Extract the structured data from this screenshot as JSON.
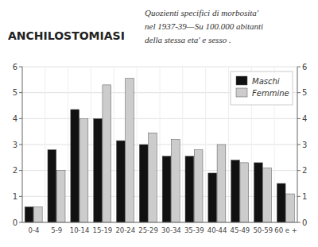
{
  "chart_data": {
    "type": "bar",
    "title": "ANCHILOSTOMIASI",
    "subtitle": [
      "Quozienti specifici di morbosita'",
      "nel 1937-39—Su 100.000 abitanti",
      "della stessa eta' e sesso ."
    ],
    "categories": [
      "0-4",
      "5-9",
      "10-14",
      "15-19",
      "20-24",
      "25-29",
      "30-34",
      "35-39",
      "40-44",
      "45-49",
      "50-59",
      "60 e +"
    ],
    "series": [
      {
        "name": "Maschi",
        "color": "#111111",
        "values": [
          0.6,
          2.8,
          4.35,
          4.0,
          3.15,
          3.0,
          2.55,
          2.55,
          1.9,
          2.4,
          2.3,
          1.5
        ]
      },
      {
        "name": "Femmine",
        "color": "#cccccc",
        "values": [
          0.6,
          2.0,
          4.0,
          5.3,
          5.55,
          3.45,
          3.2,
          2.8,
          3.0,
          2.3,
          2.1,
          1.1
        ]
      }
    ],
    "ylim": [
      0,
      6
    ],
    "yticks": [
      0,
      1,
      2,
      3,
      4,
      5,
      6
    ],
    "y2lim": [
      0,
      6
    ],
    "y2ticks": [
      0,
      1,
      2,
      3,
      4,
      5,
      6
    ],
    "grid": true,
    "legend": "upper right"
  }
}
